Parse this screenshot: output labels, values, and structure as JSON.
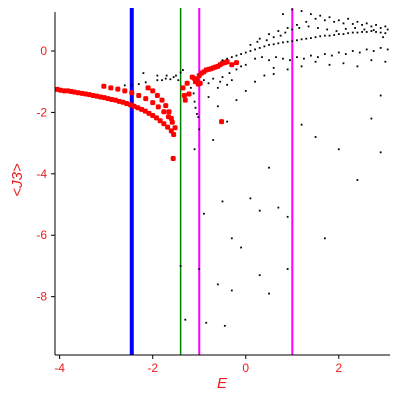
{
  "chart_data": {
    "type": "scatter",
    "xlabel": "E",
    "ylabel": "<J3>",
    "xlim": [
      -4.1,
      3.1
    ],
    "ylim": [
      -9.9,
      1.4
    ],
    "grid": false,
    "xticks": [
      -4,
      -2,
      0,
      2
    ],
    "xtick_labels": [
      "-4",
      "-2",
      "0",
      "2"
    ],
    "yticks": [
      0,
      -2,
      -4,
      -6,
      -8
    ],
    "ytick_labels": [
      "0",
      "-2",
      "-4",
      "-6",
      "-8"
    ],
    "tick_label_color": "#ee1c1c",
    "vertical_lines": [
      {
        "x": -2.45,
        "color": "#0000ff",
        "width": "thick"
      },
      {
        "x": -1.4,
        "color": "#008000",
        "width": "thin"
      },
      {
        "x": -1.0,
        "color": "#ff00ff",
        "width": "medium"
      },
      {
        "x": 1.0,
        "color": "#ff00ff",
        "width": "medium"
      }
    ],
    "series": [
      {
        "color": "#ff0000",
        "marker": "large",
        "points": [
          [
            -4.05,
            -1.25
          ],
          [
            -3.98,
            -1.28
          ],
          [
            -3.9,
            -1.3
          ],
          [
            -3.82,
            -1.3
          ],
          [
            -3.75,
            -1.32
          ],
          [
            -3.68,
            -1.34
          ],
          [
            -3.6,
            -1.36
          ],
          [
            -3.52,
            -1.38
          ],
          [
            -3.44,
            -1.4
          ],
          [
            -3.36,
            -1.42
          ],
          [
            -3.28,
            -1.45
          ],
          [
            -3.2,
            -1.47
          ],
          [
            -3.12,
            -1.5
          ],
          [
            -3.04,
            -1.52
          ],
          [
            -2.96,
            -1.55
          ],
          [
            -2.88,
            -1.58
          ],
          [
            -2.8,
            -1.6
          ],
          [
            -2.72,
            -1.64
          ],
          [
            -2.64,
            -1.67
          ],
          [
            -2.56,
            -1.71
          ],
          [
            -2.48,
            -1.75
          ],
          [
            -2.4,
            -1.8
          ],
          [
            -2.32,
            -1.85
          ],
          [
            -2.24,
            -1.9
          ],
          [
            -2.16,
            -1.96
          ],
          [
            -2.08,
            -2.03
          ],
          [
            -2.0,
            -2.1
          ],
          [
            -1.92,
            -2.18
          ],
          [
            -1.84,
            -2.27
          ],
          [
            -1.76,
            -2.37
          ],
          [
            -1.68,
            -2.48
          ],
          [
            -1.6,
            -2.6
          ],
          [
            -1.55,
            -2.72
          ],
          [
            -3.05,
            -1.15
          ],
          [
            -2.9,
            -1.2
          ],
          [
            -2.75,
            -1.24
          ],
          [
            -2.6,
            -1.3
          ],
          [
            -2.45,
            -1.36
          ],
          [
            -2.3,
            -1.45
          ],
          [
            -2.15,
            -1.55
          ],
          [
            -2.0,
            -1.68
          ],
          [
            -1.88,
            -1.82
          ],
          [
            -1.76,
            -1.98
          ],
          [
            -1.66,
            -2.14
          ],
          [
            -1.58,
            -2.32
          ],
          [
            -1.52,
            -2.5
          ],
          [
            -2.1,
            -1.2
          ],
          [
            -2.0,
            -1.3
          ],
          [
            -1.9,
            -1.45
          ],
          [
            -1.8,
            -1.6
          ],
          [
            -1.72,
            -1.78
          ],
          [
            -1.65,
            -1.98
          ],
          [
            -1.6,
            -2.2
          ],
          [
            -1.56,
            -3.5
          ],
          [
            -1.35,
            -1.2
          ],
          [
            -1.32,
            -1.45
          ],
          [
            -1.3,
            -1.6
          ],
          [
            -1.26,
            -1.05
          ],
          [
            -1.22,
            -1.4
          ],
          [
            -1.15,
            -0.85
          ],
          [
            -1.1,
            -0.9
          ],
          [
            -1.05,
            -0.95
          ],
          [
            -1.0,
            -0.8
          ],
          [
            -0.95,
            -0.72
          ],
          [
            -0.9,
            -0.68
          ],
          [
            -0.85,
            -0.62
          ],
          [
            -0.8,
            -0.6
          ],
          [
            -0.75,
            -0.58
          ],
          [
            -0.7,
            -0.55
          ],
          [
            -0.65,
            -0.52
          ],
          [
            -0.6,
            -0.5
          ],
          [
            -0.55,
            -0.45
          ],
          [
            -0.5,
            -0.4
          ],
          [
            -0.45,
            -0.38
          ],
          [
            -0.4,
            -0.35
          ],
          [
            -1.08,
            -1.0
          ],
          [
            -1.02,
            -1.08
          ],
          [
            -0.98,
            -1.05
          ],
          [
            -0.52,
            -2.3
          ],
          [
            -0.3,
            -0.45
          ],
          [
            -0.2,
            -0.38
          ]
        ]
      },
      {
        "color": "#000000",
        "marker": "small",
        "points": [
          [
            -2.6,
            -1.12
          ],
          [
            -2.45,
            -1.12
          ],
          [
            -2.3,
            -1.08
          ],
          [
            -2.15,
            -1.02
          ],
          [
            -1.9,
            -0.95
          ],
          [
            -1.8,
            -0.95
          ],
          [
            -1.72,
            -0.9
          ],
          [
            -1.62,
            -0.92
          ],
          [
            -1.55,
            -0.85
          ],
          [
            -1.5,
            -0.8
          ],
          [
            -1.45,
            -0.95
          ],
          [
            -1.4,
            -0.7
          ],
          [
            -1.35,
            -0.62
          ],
          [
            -1.9,
            -0.8
          ],
          [
            -1.7,
            -0.8
          ],
          [
            -2.2,
            -0.72
          ],
          [
            -1.18,
            -1.2
          ],
          [
            -1.12,
            -1.38
          ],
          [
            -1.1,
            -1.65
          ],
          [
            -1.08,
            -1.85
          ],
          [
            -1.05,
            -2.05
          ],
          [
            -1.02,
            -2.15
          ],
          [
            -1.0,
            -2.55
          ],
          [
            -0.9,
            -0.95
          ],
          [
            -0.8,
            -1.05
          ],
          [
            -0.7,
            -0.9
          ],
          [
            -0.6,
            -1.2
          ],
          [
            -0.55,
            -1.0
          ],
          [
            -0.5,
            -0.85
          ],
          [
            -0.4,
            -1.1
          ],
          [
            -0.35,
            -0.72
          ],
          [
            -0.3,
            -0.95
          ],
          [
            -0.2,
            -0.6
          ],
          [
            -0.1,
            -0.5
          ],
          [
            0.0,
            -0.45
          ],
          [
            -0.5,
            -0.3
          ],
          [
            -0.4,
            -0.25
          ],
          [
            -0.3,
            -0.2
          ],
          [
            -0.2,
            -0.15
          ],
          [
            -0.1,
            -0.1
          ],
          [
            0.0,
            -0.05
          ],
          [
            0.1,
            0.0
          ],
          [
            0.2,
            0.05
          ],
          [
            0.3,
            0.1
          ],
          [
            0.4,
            0.15
          ],
          [
            0.5,
            0.2
          ],
          [
            0.6,
            0.22
          ],
          [
            0.7,
            0.25
          ],
          [
            0.8,
            0.28
          ],
          [
            0.9,
            0.3
          ],
          [
            1.0,
            0.32
          ],
          [
            1.1,
            0.35
          ],
          [
            1.2,
            0.38
          ],
          [
            1.3,
            0.4
          ],
          [
            1.4,
            0.42
          ],
          [
            1.5,
            0.45
          ],
          [
            1.6,
            0.48
          ],
          [
            1.7,
            0.5
          ],
          [
            1.8,
            0.5
          ],
          [
            1.9,
            0.52
          ],
          [
            2.0,
            0.55
          ],
          [
            2.1,
            0.55
          ],
          [
            2.2,
            0.58
          ],
          [
            2.3,
            0.6
          ],
          [
            2.4,
            0.6
          ],
          [
            2.5,
            0.62
          ],
          [
            2.6,
            0.62
          ],
          [
            2.7,
            0.65
          ],
          [
            2.8,
            0.62
          ],
          [
            2.9,
            0.6
          ],
          [
            3.0,
            0.58
          ],
          [
            0.2,
            -0.25
          ],
          [
            0.35,
            -0.2
          ],
          [
            0.5,
            -0.3
          ],
          [
            0.65,
            -0.2
          ],
          [
            0.8,
            -0.25
          ],
          [
            0.95,
            -0.3
          ],
          [
            1.1,
            -0.2
          ],
          [
            1.25,
            -0.25
          ],
          [
            1.4,
            -0.15
          ],
          [
            1.55,
            -0.2
          ],
          [
            1.7,
            -0.1
          ],
          [
            1.85,
            -0.15
          ],
          [
            2.0,
            -0.05
          ],
          [
            2.15,
            -0.1
          ],
          [
            2.3,
            0.0
          ],
          [
            2.45,
            -0.05
          ],
          [
            2.6,
            0.05
          ],
          [
            2.75,
            0.0
          ],
          [
            2.9,
            0.1
          ],
          [
            3.05,
            0.05
          ],
          [
            0.3,
            0.4
          ],
          [
            0.5,
            0.55
          ],
          [
            0.7,
            0.65
          ],
          [
            0.9,
            0.75
          ],
          [
            1.1,
            0.85
          ],
          [
            1.3,
            0.95
          ],
          [
            1.5,
            1.05
          ],
          [
            1.7,
            1.0
          ],
          [
            1.9,
            0.95
          ],
          [
            2.1,
            0.9
          ],
          [
            2.3,
            0.88
          ],
          [
            2.5,
            0.85
          ],
          [
            2.7,
            0.8
          ],
          [
            2.9,
            0.75
          ],
          [
            3.05,
            0.7
          ],
          [
            0.1,
            0.2
          ],
          [
            0.25,
            0.3
          ],
          [
            0.45,
            0.35
          ],
          [
            0.6,
            0.45
          ],
          [
            0.75,
            0.5
          ],
          [
            0.85,
            0.6
          ],
          [
            1.0,
            0.7
          ],
          [
            1.15,
            0.75
          ],
          [
            1.35,
            0.8
          ],
          [
            1.55,
            0.75
          ],
          [
            1.75,
            0.7
          ],
          [
            1.95,
            0.65
          ],
          [
            2.15,
            0.72
          ],
          [
            2.35,
            0.75
          ],
          [
            2.55,
            0.7
          ],
          [
            2.75,
            0.68
          ],
          [
            2.95,
            0.45
          ],
          [
            0.6,
            -0.55
          ],
          [
            0.9,
            -0.6
          ],
          [
            1.2,
            -0.5
          ],
          [
            1.5,
            -0.35
          ],
          [
            1.8,
            -0.45
          ],
          [
            2.1,
            -0.4
          ],
          [
            2.4,
            -0.5
          ],
          [
            2.7,
            -0.3
          ],
          [
            3.0,
            -0.35
          ],
          [
            0.8,
            1.2
          ],
          [
            1.0,
            1.35
          ],
          [
            1.2,
            1.3
          ],
          [
            1.4,
            1.2
          ],
          [
            1.6,
            1.15
          ],
          [
            1.8,
            1.1
          ],
          [
            2.0,
            1.0
          ],
          [
            2.2,
            1.05
          ],
          [
            2.4,
            0.95
          ],
          [
            2.6,
            0.9
          ],
          [
            2.8,
            0.85
          ],
          [
            3.0,
            0.8
          ],
          [
            -0.8,
            -1.5
          ],
          [
            -0.6,
            -1.8
          ],
          [
            -0.4,
            -2.3
          ],
          [
            -0.2,
            -1.6
          ],
          [
            0.0,
            -1.3
          ],
          [
            0.2,
            -1.0
          ],
          [
            0.4,
            -0.8
          ],
          [
            0.6,
            -0.75
          ],
          [
            -1.1,
            -3.2
          ],
          [
            -0.9,
            -5.3
          ],
          [
            -0.7,
            -2.9
          ],
          [
            -0.5,
            -4.9
          ],
          [
            -0.3,
            -6.1
          ],
          [
            -0.1,
            -6.4
          ],
          [
            0.1,
            -4.8
          ],
          [
            0.3,
            -5.2
          ],
          [
            0.5,
            -3.8
          ],
          [
            0.7,
            -5.1
          ],
          [
            0.9,
            -5.4
          ],
          [
            1.2,
            -2.4
          ],
          [
            1.5,
            -2.8
          ],
          [
            1.7,
            -6.1
          ],
          [
            2.0,
            -3.2
          ],
          [
            2.4,
            -4.2
          ],
          [
            2.7,
            -2.2
          ],
          [
            2.9,
            -3.3
          ],
          [
            -1.4,
            -7.0
          ],
          [
            -1.0,
            -7.1
          ],
          [
            -0.6,
            -7.6
          ],
          [
            -0.3,
            -7.8
          ],
          [
            0.3,
            -7.3
          ],
          [
            0.5,
            -7.9
          ],
          [
            0.9,
            -7.1
          ],
          [
            -1.3,
            -8.75
          ],
          [
            -0.85,
            -8.85
          ],
          [
            -0.45,
            -8.95
          ],
          [
            2.9,
            -1.45
          ]
        ]
      }
    ]
  }
}
